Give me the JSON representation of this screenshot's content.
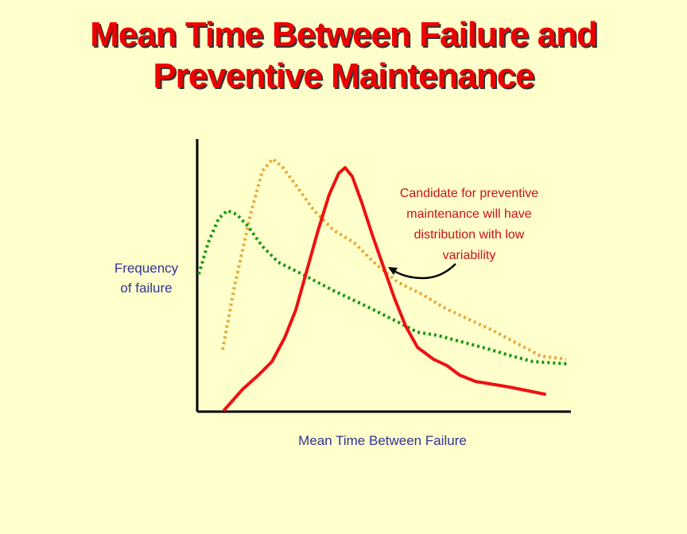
{
  "title": [
    "Mean Time Between Failure and",
    "Preventive Maintenance"
  ],
  "y_label": [
    "Frequency",
    "of failure"
  ],
  "x_label": "Mean Time Between Failure",
  "annotation": [
    "Candidate for preventive",
    "maintenance will have",
    "distribution with low",
    "variability"
  ]
}
